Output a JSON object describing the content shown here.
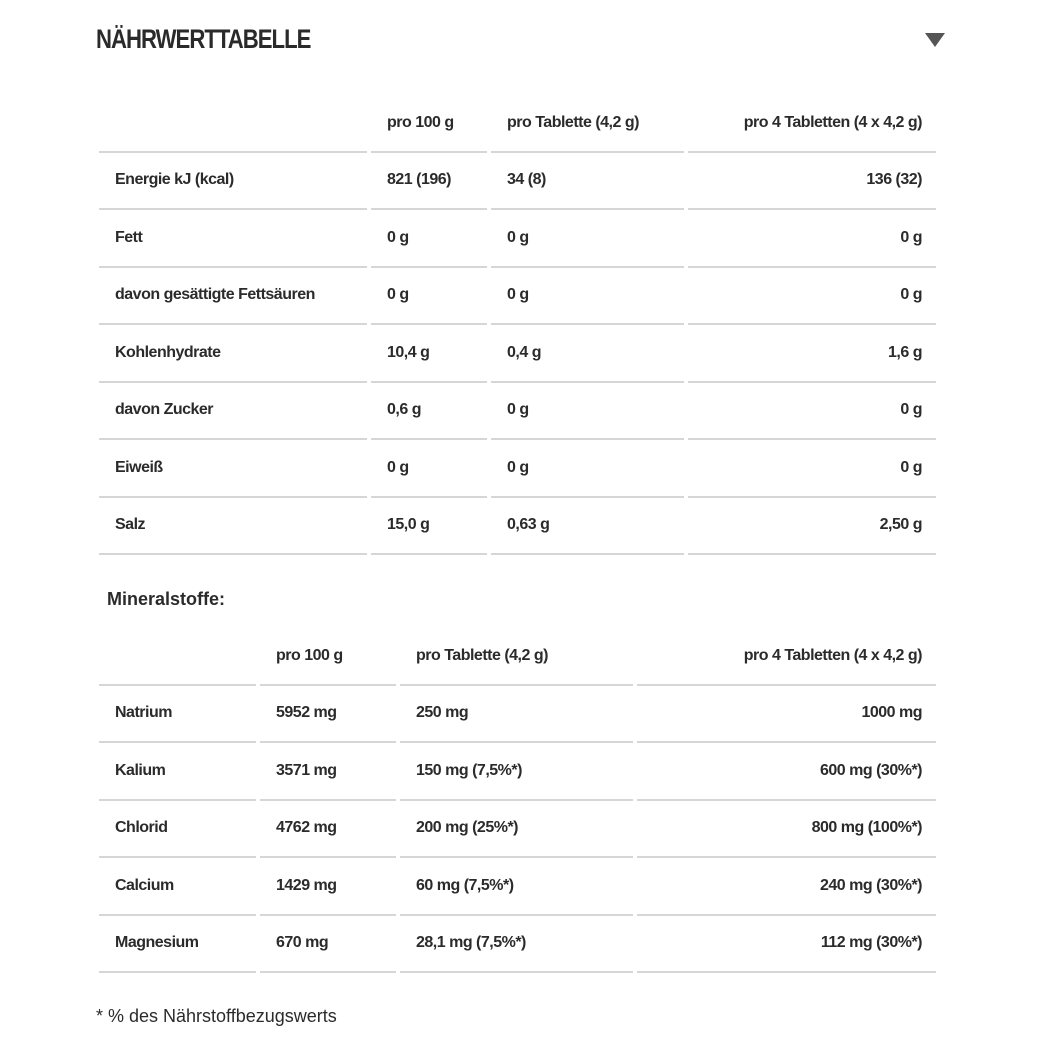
{
  "title": "NÄHRWERTTABELLE",
  "toggle_icon": "triangle-down-icon",
  "nutrition": {
    "headers": [
      "",
      "pro 100 g",
      "pro Tablette (4,2 g)",
      "pro 4 Tabletten (4 x 4,2 g)"
    ],
    "rows": [
      [
        "Energie kJ (kcal)",
        "821 (196)",
        "34 (8)",
        "136 (32)"
      ],
      [
        "Fett",
        "0 g",
        "0 g",
        "0 g"
      ],
      [
        "davon gesättigte Fettsäuren",
        "0 g",
        "0 g",
        "0 g"
      ],
      [
        "Kohlenhydrate",
        "10,4 g",
        "0,4 g",
        "1,6 g"
      ],
      [
        "davon Zucker",
        "0,6 g",
        "0 g",
        "0 g"
      ],
      [
        "Eiweiß",
        "0 g",
        "0 g",
        "0 g"
      ],
      [
        "Salz",
        "15,0 g",
        "0,63 g",
        "2,50 g"
      ]
    ]
  },
  "minerals": {
    "title": "Mineralstoffe:",
    "headers": [
      "",
      "pro 100 g",
      "pro Tablette (4,2 g)",
      "pro 4 Tabletten (4 x 4,2 g)"
    ],
    "rows": [
      [
        "Natrium",
        "5952 mg",
        "250 mg",
        "1000 mg"
      ],
      [
        "Kalium",
        "3571 mg",
        "150 mg (7,5%*)",
        "600 mg (30%*)"
      ],
      [
        "Chlorid",
        "4762 mg",
        "200 mg (25%*)",
        "800 mg (100%*)"
      ],
      [
        "Calcium",
        "1429 mg",
        "60 mg (7,5%*)",
        "240 mg (30%*)"
      ],
      [
        "Magnesium",
        "670 mg",
        "28,1 mg (7,5%*)",
        "112 mg (30%*)"
      ]
    ]
  },
  "footnote": "* % des Nährstoffbezugswerts"
}
